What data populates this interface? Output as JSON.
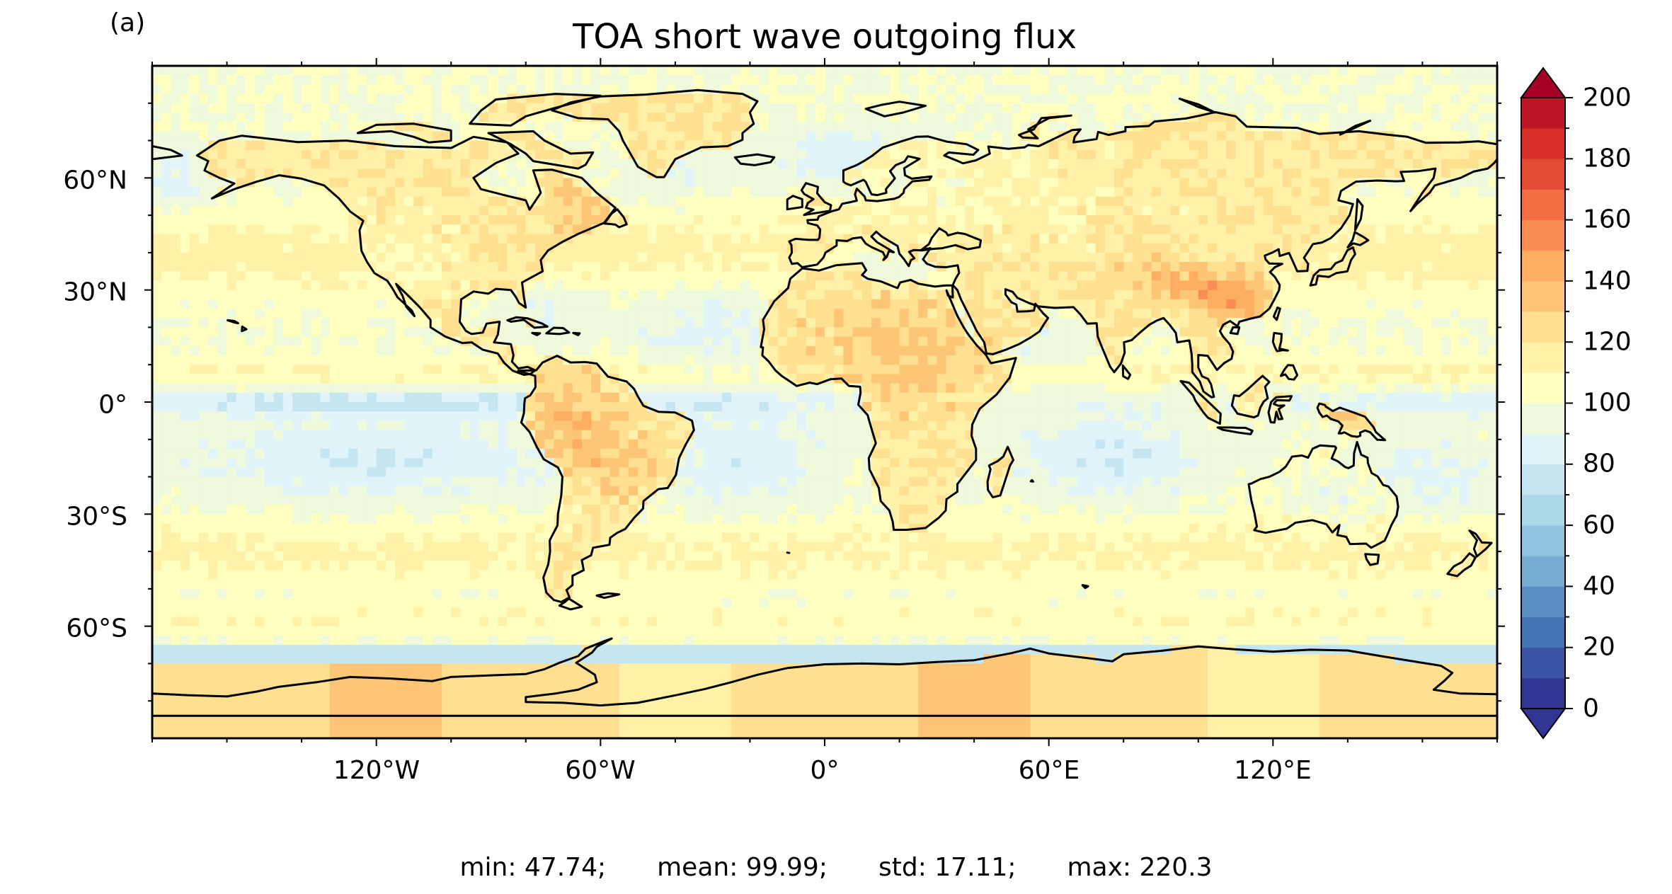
{
  "panel_label": "(a)",
  "title": "TOA short wave outgoing flux",
  "map": {
    "projection": "PlateCarree",
    "lon_range": [
      -180,
      180
    ],
    "lat_range": [
      -90,
      90
    ],
    "lon_ticks": [
      "120°W",
      "60°W",
      "0°",
      "60°E",
      "120°E"
    ],
    "lon_tick_values": [
      -120,
      -60,
      0,
      60,
      120
    ],
    "lat_ticks": [
      "60°N",
      "30°N",
      "0°",
      "30°S",
      "60°S"
    ],
    "lat_tick_values": [
      60,
      30,
      0,
      -30,
      -60
    ],
    "coastlines": true
  },
  "colorbar": {
    "colormap": "RdYlBu_r",
    "ticks": [
      "200",
      "180",
      "160",
      "140",
      "120",
      "100",
      "80",
      "60",
      "40",
      "20",
      "0"
    ],
    "tick_values": [
      200,
      180,
      160,
      140,
      120,
      100,
      80,
      60,
      40,
      20,
      0
    ],
    "range": [
      0,
      200
    ],
    "step": 10,
    "extend": "both",
    "colors": [
      "#313695",
      "#3a53a4",
      "#4575b4",
      "#5b8fc2",
      "#74add1",
      "#90c3dd",
      "#abd9e9",
      "#c5e6f0",
      "#e0f3f8",
      "#eff9db",
      "#ffffbf",
      "#fff1a8",
      "#fee090",
      "#fdc677",
      "#fdae61",
      "#f88e52",
      "#f46d43",
      "#e44d34",
      "#d73027",
      "#bd1726",
      "#a50026"
    ]
  },
  "stats": {
    "min": "min: 47.74;",
    "mean": "mean: 99.99;",
    "std": "std: 17.11;",
    "max": "max: 220.3"
  }
}
